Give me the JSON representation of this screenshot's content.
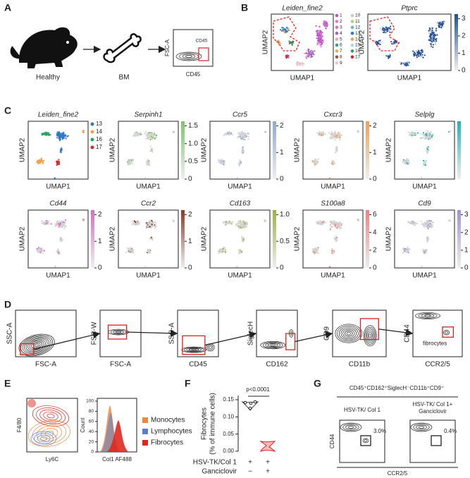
{
  "panel_a": {
    "label": "A",
    "mouse": "Healthy",
    "tissue": "BM",
    "gate_plot": {
      "y_axis": "FSC-A",
      "x_axis": "CD45",
      "gate": "CD45"
    }
  },
  "panel_b": {
    "label": "B",
    "x_axis": "UMAP1",
    "y_axis": "UMAP2",
    "clusters": {
      "title": "Leiden_fine2",
      "legend": [
        {
          "name": "1",
          "color": "#b84fd6"
        },
        {
          "name": "2",
          "color": "#e57ab5"
        },
        {
          "name": "3",
          "color": "#d070c8"
        },
        {
          "name": "4",
          "color": "#9a64c8"
        },
        {
          "name": "5",
          "color": "#f0a0c0"
        },
        {
          "name": "6",
          "color": "#2a9d8f"
        },
        {
          "name": "7",
          "color": "#e0b040"
        },
        {
          "name": "8",
          "color": "#8d5a3c"
        },
        {
          "name": "9",
          "color": "#f7c0d8"
        },
        {
          "name": "10",
          "color": "#c9c9c9"
        },
        {
          "name": "11",
          "color": "#a6d96a"
        },
        {
          "name": "12",
          "color": "#66c2a5"
        },
        {
          "name": "13",
          "color": "#2f78c4"
        },
        {
          "name": "14",
          "color": "#f4a24a"
        },
        {
          "name": "15",
          "color": "#b0d0f0"
        },
        {
          "name": "16",
          "color": "#2ca25f"
        },
        {
          "name": "17",
          "color": "#d62728"
        }
      ]
    },
    "expression": {
      "title": "Ptprc",
      "color": "#1f4e9c",
      "colorbar_ticks": [
        "0",
        "1",
        "2",
        "3"
      ]
    }
  },
  "panel_c": {
    "label": "C",
    "x_axis": "UMAP1",
    "y_axis": "UMAP2",
    "clusters": {
      "title": "Leiden_fine2",
      "legend": [
        {
          "name": "13",
          "color": "#2f78c4"
        },
        {
          "name": "14",
          "color": "#f4a24a"
        },
        {
          "name": "16",
          "color": "#2ca25f"
        },
        {
          "name": "17",
          "color": "#d62728"
        }
      ]
    },
    "expression": [
      {
        "title": "Serpinh1",
        "color": "#7cc46b",
        "colorbar_ticks": [
          "0",
          "0.5",
          "1.0",
          "1.5"
        ]
      },
      {
        "title": "Ccr5",
        "color": "#8fa8d8",
        "colorbar_ticks": [
          "0",
          "1",
          "2"
        ]
      },
      {
        "title": "Cxcr3",
        "color": "#f0a050",
        "colorbar_ticks": [
          "0",
          "1",
          "2"
        ]
      },
      {
        "title": "Selplg",
        "color": "#20b2b8"
      },
      {
        "title": "Cd44",
        "color": "#d070c0",
        "colorbar_ticks": [
          "0",
          "1",
          "2"
        ]
      },
      {
        "title": "Ccr2",
        "color": "#8b3a2a",
        "colorbar_ticks": [
          "0",
          "1",
          "2"
        ]
      },
      {
        "title": "Cd163",
        "color": "#a0b040",
        "colorbar_ticks": [
          "0",
          "0.5",
          "1.0"
        ]
      },
      {
        "title": "S100a8",
        "color": "#f08080",
        "colorbar_ticks": [
          "0",
          "2",
          "4",
          "6"
        ]
      },
      {
        "title": "Cd9",
        "color": "#a890d0",
        "colorbar_ticks": [
          "0",
          "1",
          "2",
          "3"
        ]
      }
    ]
  },
  "panel_d": {
    "label": "D",
    "plots": [
      {
        "y_axis": "SSC-A",
        "x_axis": "FSC-A"
      },
      {
        "y_axis": "FSC-W",
        "x_axis": "FSC-A"
      },
      {
        "y_axis": "SSC-A",
        "x_axis": "CD45"
      },
      {
        "y_axis": "SiglecH",
        "x_axis": "CD162"
      },
      {
        "y_axis": "CD9",
        "x_axis": "CD11b"
      },
      {
        "y_axis": "CD44",
        "x_axis": "CCR2/5"
      }
    ],
    "annotation": "fibrocytes"
  },
  "panel_e": {
    "label": "E",
    "contour": {
      "y_axis": "F4/80",
      "x_axis": "Ly6C"
    },
    "histogram": {
      "y_axis": "Count",
      "x_axis": "Col1 AF488",
      "yticks": [
        "0",
        "20",
        "40",
        "60",
        "80",
        "100"
      ]
    },
    "legend": [
      {
        "name": "Monocytes",
        "color": "#f0883a"
      },
      {
        "name": "Lymphocytes",
        "color": "#5b7fc7"
      },
      {
        "name": "Fibrocytes",
        "color": "#e0281e"
      }
    ]
  },
  "panel_f": {
    "label": "F",
    "y_axis": [
      "Fibrocytes",
      "(% of immune cells)"
    ],
    "yticks": [
      "0.00",
      "0.05",
      "0.10",
      "0.15"
    ],
    "p_value": "p<0.0001",
    "rows": [
      {
        "name": "HSV-TK/Col 1",
        "marks": [
          "+",
          "+"
        ]
      },
      {
        "name": "Ganciclovir",
        "marks": [
          "−",
          "+"
        ]
      }
    ]
  },
  "panel_g": {
    "label": "G",
    "gate_path": "CD45⁺CD162⁺SiglecH⁻CD11b⁺CD9⁺",
    "plots": [
      {
        "title": [
          "HSV-TK/ Col 1"
        ],
        "percent": "3.0%"
      },
      {
        "title": [
          "HSV-TK/ Col 1+",
          "Ganciclovir"
        ],
        "percent": "0.4%"
      }
    ],
    "y_axis": "CD44",
    "x_axis": "CCR2/5"
  }
}
